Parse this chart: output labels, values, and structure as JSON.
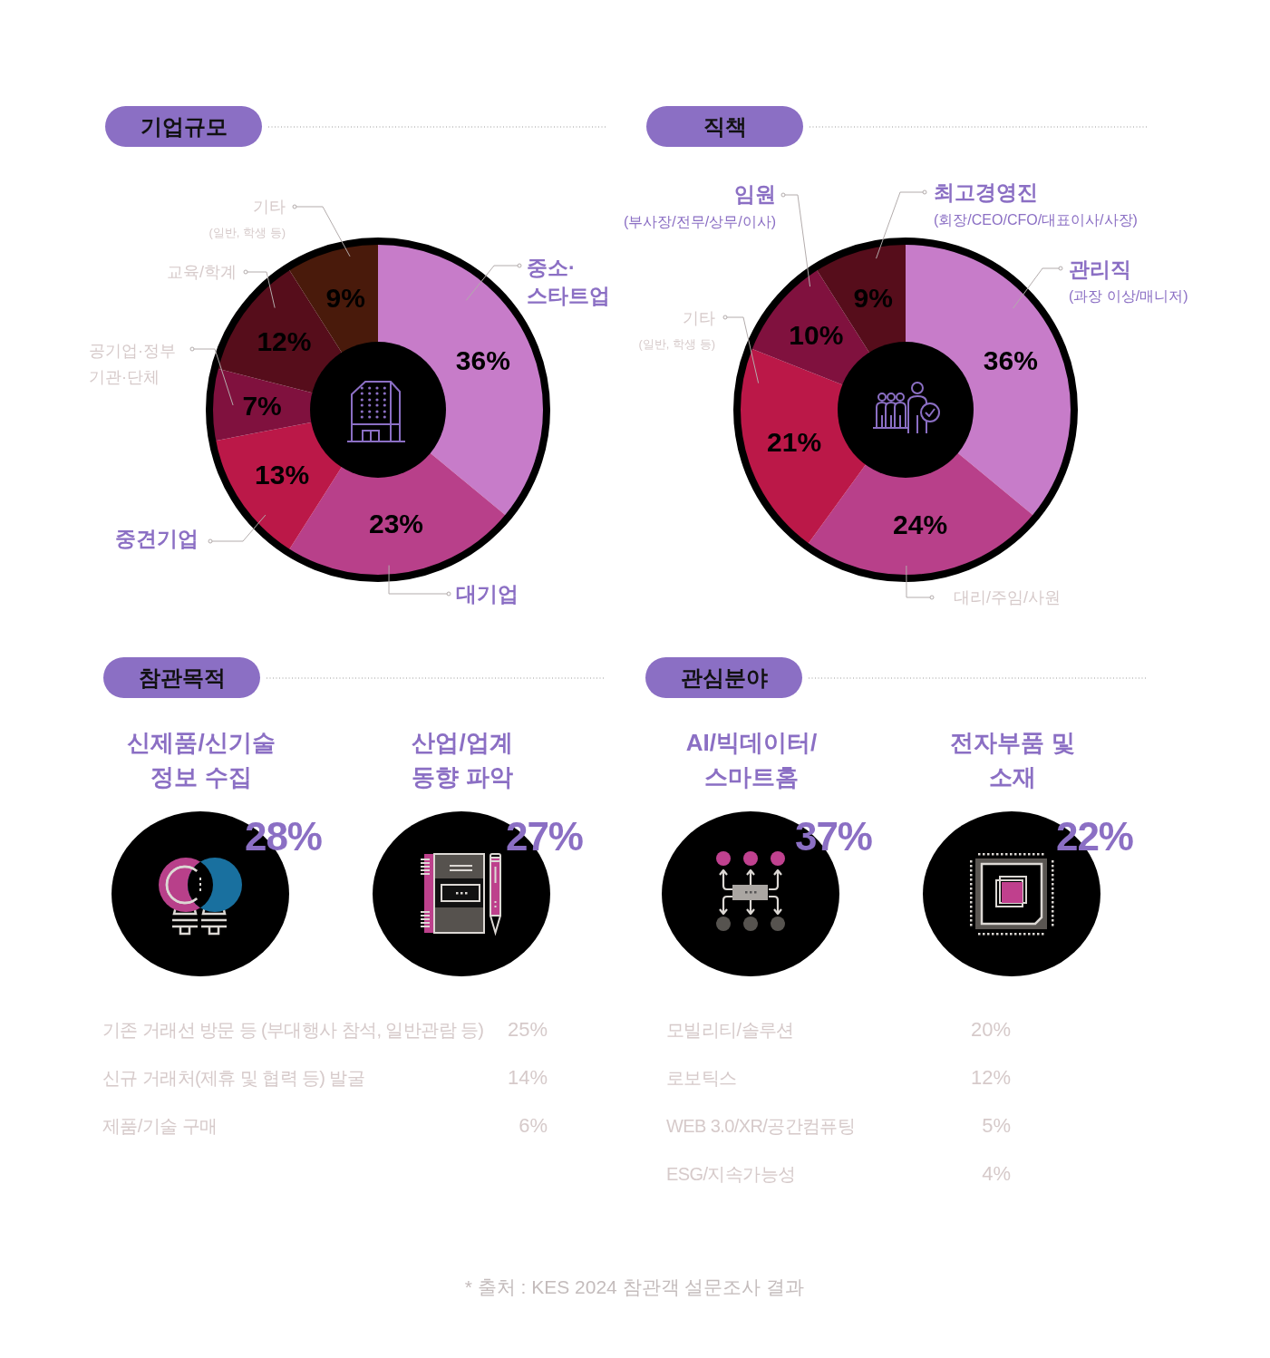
{
  "chart_data": [
    {
      "type": "donut",
      "title": "기업규모",
      "categories": [
        "중소·\n스타트업",
        "대기업",
        "중견기업",
        "공기업·정부\n기관·단체",
        "교육/학계",
        "기타\n(일반, 학생 등)"
      ],
      "values": [
        36,
        23,
        13,
        7,
        12,
        9
      ],
      "value_labels": [
        "36%",
        "23%",
        "13%",
        "7%",
        "12%",
        "9%"
      ],
      "colors": [
        "#c77cc9",
        "#b8408a",
        "#bb1848",
        "#80113e",
        "#560d1b",
        "#491a0b"
      ]
    },
    {
      "type": "donut",
      "title": "직책",
      "categories": [
        "관리직\n(과장 이상/매니저)",
        "대리/주임/사원",
        "기타\n(일반, 학생 등)",
        "임원\n(부사장/전무/상무/이사)",
        "최고경영진\n(회장/CEO/CFO/대표이사/사장)"
      ],
      "values": [
        36,
        24,
        21,
        10,
        9
      ],
      "value_labels": [
        "36%",
        "24%",
        "21%",
        "10%",
        "9%"
      ],
      "colors": [
        "#c77cc9",
        "#b8408a",
        "#bb1848",
        "#80113e",
        "#560d1b"
      ]
    },
    {
      "type": "other",
      "title": "참관목적",
      "categories": [
        "신제품/신기술\n정보 수집",
        "산업/업계\n동향 파악",
        "기존 거래선 방문 등 (부대행사 참석, 일반관람 등)",
        "신규 거래처(제휴 및 협력 등) 발굴",
        "제품/기술 구매"
      ],
      "values": [
        28,
        27,
        25,
        14,
        6
      ],
      "value_labels": [
        "28%",
        "27%",
        "25%",
        "14%",
        "6%"
      ]
    },
    {
      "type": "other",
      "title": "관심분야",
      "categories": [
        "AI/빅데이터/\n스마트홈",
        "전자부품 및\n소재",
        "모빌리티/솔루션",
        "로보틱스",
        "WEB 3.0/XR/공간컴퓨팅",
        "ESG/지속가능성"
      ],
      "values": [
        37,
        22,
        20,
        12,
        5,
        4
      ],
      "value_labels": [
        "37%",
        "22%",
        "20%",
        "12%",
        "5%",
        "4%"
      ],
      "annotations": [
        "* 출처 : KES 2024 참관객 설문조사 결과"
      ]
    }
  ]
}
